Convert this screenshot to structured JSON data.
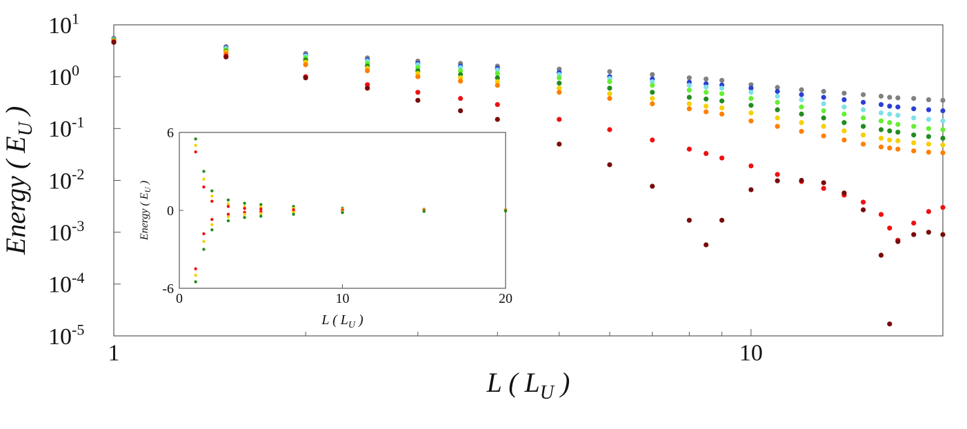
{
  "chart_data": [
    {
      "type": "scatter",
      "xscale": "log",
      "yscale": "log",
      "xlabel": {
        "text": "L ( L",
        "sub": "U",
        "end": " )"
      },
      "ylabel": {
        "text": "Energy ( E",
        "sub": "U",
        "end": " )"
      },
      "xlim": [
        1,
        20
      ],
      "ylim": [
        1e-05,
        10
      ],
      "xticks": [
        1,
        10
      ],
      "xminor": [
        2,
        3,
        4,
        5,
        6,
        7,
        8,
        9,
        20
      ],
      "yticks": [
        {
          "value": 10,
          "label": "10",
          "exp": "1"
        },
        {
          "value": 1,
          "label": "10",
          "exp": "0"
        },
        {
          "value": 0.1,
          "label": "10",
          "exp": "-1"
        },
        {
          "value": 0.01,
          "label": "10",
          "exp": "-2"
        },
        {
          "value": 0.001,
          "label": "10",
          "exp": "-3"
        },
        {
          "value": 0.0001,
          "label": "10",
          "exp": "-4"
        },
        {
          "value": 1e-05,
          "label": "10",
          "exp": "-5"
        }
      ],
      "x": [
        1,
        1.5,
        2,
        2.5,
        3,
        3.5,
        4,
        5,
        6,
        7,
        8,
        8.5,
        9,
        10,
        11,
        12,
        13,
        14,
        15,
        16,
        16.5,
        17,
        18,
        19,
        20
      ],
      "series": [
        {
          "color": "#808080",
          "values": [
            5.5,
            3.8,
            2.8,
            2.3,
            2.0,
            1.8,
            1.6,
            1.4,
            1.25,
            1.1,
            0.95,
            0.9,
            0.85,
            0.7,
            0.62,
            0.56,
            0.52,
            0.48,
            0.45,
            0.42,
            0.4,
            0.39,
            0.38,
            0.36,
            0.35
          ]
        },
        {
          "color": "#2a3fd6",
          "values": [
            5.3,
            3.6,
            2.6,
            2.1,
            1.8,
            1.6,
            1.45,
            1.2,
            1.0,
            0.9,
            0.78,
            0.73,
            0.69,
            0.6,
            0.52,
            0.45,
            0.4,
            0.36,
            0.32,
            0.29,
            0.27,
            0.26,
            0.24,
            0.23,
            0.22
          ]
        },
        {
          "color": "#7fe0e8",
          "values": [
            5.2,
            3.5,
            2.5,
            2.0,
            1.7,
            1.5,
            1.35,
            1.1,
            0.92,
            0.8,
            0.68,
            0.63,
            0.6,
            0.5,
            0.42,
            0.36,
            0.3,
            0.26,
            0.23,
            0.2,
            0.19,
            0.18,
            0.16,
            0.15,
            0.14
          ]
        },
        {
          "color": "#66ee33",
          "values": [
            5.1,
            3.3,
            2.3,
            1.8,
            1.5,
            1.3,
            1.15,
            0.95,
            0.8,
            0.68,
            0.55,
            0.5,
            0.47,
            0.38,
            0.32,
            0.26,
            0.22,
            0.19,
            0.16,
            0.14,
            0.13,
            0.12,
            0.11,
            0.1,
            0.095
          ]
        },
        {
          "color": "#228b22",
          "values": [
            5.0,
            3.1,
            2.1,
            1.6,
            1.3,
            1.1,
            0.95,
            0.75,
            0.6,
            0.5,
            0.4,
            0.37,
            0.34,
            0.28,
            0.23,
            0.19,
            0.16,
            0.13,
            0.11,
            0.095,
            0.09,
            0.085,
            0.075,
            0.07,
            0.065
          ]
        },
        {
          "color": "#f5d000",
          "values": [
            4.9,
            3.0,
            1.9,
            1.45,
            1.15,
            0.95,
            0.8,
            0.6,
            0.47,
            0.38,
            0.3,
            0.27,
            0.25,
            0.2,
            0.16,
            0.13,
            0.11,
            0.09,
            0.075,
            0.065,
            0.06,
            0.058,
            0.053,
            0.05,
            0.048
          ]
        },
        {
          "color": "#ff7f00",
          "values": [
            4.8,
            2.8,
            1.7,
            1.3,
            1.0,
            0.82,
            0.68,
            0.5,
            0.38,
            0.3,
            0.24,
            0.21,
            0.19,
            0.14,
            0.11,
            0.088,
            0.072,
            0.06,
            0.05,
            0.044,
            0.042,
            0.04,
            0.037,
            0.035,
            0.034
          ]
        },
        {
          "color": "#ee1111",
          "values": [
            4.7,
            2.5,
            1.0,
            0.7,
            0.5,
            0.38,
            0.29,
            0.15,
            0.095,
            0.06,
            0.04,
            0.033,
            0.027,
            0.019,
            0.013,
            0.0095,
            0.007,
            0.0052,
            0.0038,
            0.0022,
            0.0012,
            0.0007,
            0.0015,
            0.0025,
            0.003
          ]
        },
        {
          "color": "#7a0a0a",
          "values": [
            4.6,
            2.4,
            0.95,
            0.6,
            0.35,
            0.22,
            0.15,
            0.05,
            0.02,
            0.0077,
            0.0017,
            0.00057,
            0.0017,
            0.0066,
            0.0098,
            0.01,
            0.009,
            0.0057,
            0.0027,
            0.00036,
            1.7e-05,
            0.00066,
            0.0009,
            0.001,
            0.0009
          ]
        }
      ]
    },
    {
      "type": "scatter",
      "xlabel": {
        "text": "L ( L",
        "sub": "U",
        "end": " )"
      },
      "ylabel": {
        "text": "Energy ( E",
        "sub": "U",
        "end": " )"
      },
      "xlim": [
        0,
        20
      ],
      "ylim": [
        -6,
        6
      ],
      "xticks": [
        0,
        10,
        20
      ],
      "yticks": [
        -6,
        0,
        6
      ],
      "x": [
        1,
        1.5,
        2,
        3,
        4,
        5,
        7,
        10,
        15,
        20
      ],
      "series": [
        {
          "color": "#228b22",
          "values": [
            5.5,
            3,
            1.5,
            0.8,
            0.55,
            0.45,
            0.3,
            0.17,
            0.08,
            0.05
          ]
        },
        {
          "color": "#f5d000",
          "values": [
            5,
            2.4,
            1.1,
            0.5,
            0.3,
            0.25,
            0.15,
            0.1,
            0.05,
            0.03
          ]
        },
        {
          "color": "#ee1111",
          "values": [
            4.5,
            1.8,
            0.7,
            0.3,
            0.15,
            0.1,
            0.05,
            0.02,
            0.01,
            0.005
          ]
        },
        {
          "color": "#ee1111",
          "values": [
            -4.5,
            -1.8,
            -0.7,
            -0.3,
            -0.15,
            -0.1,
            -0.05,
            -0.02,
            -0.01,
            -0.005
          ]
        },
        {
          "color": "#f5d000",
          "values": [
            -5,
            -2.4,
            -1.1,
            -0.5,
            -0.3,
            -0.25,
            -0.15,
            -0.1,
            -0.05,
            -0.03
          ]
        },
        {
          "color": "#228b22",
          "values": [
            -5.5,
            -3,
            -1.5,
            -0.8,
            -0.55,
            -0.45,
            -0.3,
            -0.17,
            -0.08,
            -0.05
          ]
        }
      ]
    }
  ]
}
